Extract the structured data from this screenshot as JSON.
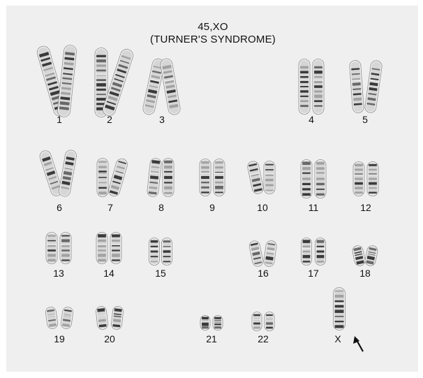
{
  "title": {
    "line1": "45,XO",
    "line2": "(TURNER'S SYNDROME)"
  },
  "chromosome_labels": [
    "1",
    "2",
    "3",
    "4",
    "5",
    "6",
    "7",
    "8",
    "9",
    "10",
    "11",
    "12",
    "13",
    "14",
    "15",
    "16",
    "17",
    "18",
    "19",
    "20",
    "21",
    "22",
    "X"
  ],
  "colors": {
    "background": "#efefef",
    "chromatid_fill": "#d6d6d6",
    "band_dark": "#1e1e1e",
    "outline": "#8a8a8a"
  },
  "icons": [
    "arrow-pointer-icon"
  ]
}
